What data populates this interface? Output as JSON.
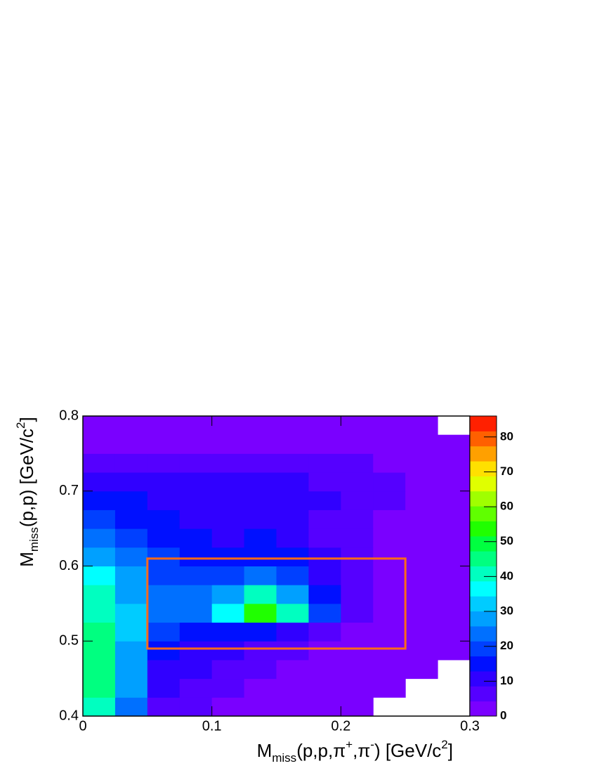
{
  "chart_data": {
    "type": "heatmap2d",
    "x_label": [
      {
        "text": "M"
      },
      {
        "text": "miss",
        "shift": "sub"
      },
      {
        "text": "(p,p,π"
      },
      {
        "text": "+",
        "shift": "super"
      },
      {
        "text": ",π"
      },
      {
        "text": "-",
        "shift": "super"
      },
      {
        "text": ") [GeV/c"
      },
      {
        "text": "2",
        "shift": "super"
      },
      {
        "text": "]"
      }
    ],
    "y_label": [
      {
        "text": "M"
      },
      {
        "text": "miss",
        "shift": "sub"
      },
      {
        "text": "(p,p) [GeV/c"
      },
      {
        "text": "2",
        "shift": "super"
      },
      {
        "text": "]"
      }
    ],
    "xlim": [
      0,
      0.3
    ],
    "xticks": [
      0,
      0.1,
      0.2,
      0.3
    ],
    "ylim": [
      0.4,
      0.8
    ],
    "yticks": [
      0.4,
      0.5,
      0.6,
      0.7,
      0.8
    ],
    "zlim": [
      0,
      86
    ],
    "zticks": [
      0,
      10,
      20,
      30,
      40,
      50,
      60,
      70,
      80
    ],
    "palette": [
      "#7a00ff",
      "#5500ff",
      "#3000ff",
      "#0010ff",
      "#0040ff",
      "#0070ff",
      "#00a0ff",
      "#00ccff",
      "#00ffff",
      "#00ffc0",
      "#00ff80",
      "#00ff40",
      "#20ff00",
      "#60ff00",
      "#a0ff00",
      "#e0ff00",
      "#ffe000",
      "#ffa000",
      "#ff6000",
      "#ff2000"
    ],
    "xbins": [
      0,
      0.025,
      0.05,
      0.075,
      0.1,
      0.125,
      0.15,
      0.175,
      0.2,
      0.225,
      0.25,
      0.275,
      0.3
    ],
    "ybins": [
      0.4,
      0.425,
      0.45,
      0.475,
      0.5,
      0.525,
      0.55,
      0.575,
      0.6,
      0.625,
      0.65,
      0.675,
      0.7,
      0.725,
      0.75,
      0.775,
      0.8
    ],
    "z": [
      [
        40,
        25,
        8,
        5,
        4,
        2,
        1,
        1,
        1,
        0,
        0,
        0
      ],
      [
        45,
        28,
        10,
        7,
        5,
        3,
        2,
        1,
        1,
        1,
        0,
        0
      ],
      [
        45,
        30,
        12,
        9,
        7,
        5,
        3,
        2,
        1,
        1,
        1,
        0
      ],
      [
        45,
        30,
        14,
        12,
        10,
        8,
        6,
        4,
        2,
        1,
        1,
        1
      ],
      [
        45,
        32,
        18,
        16,
        16,
        15,
        12,
        8,
        4,
        2,
        1,
        1
      ],
      [
        42,
        32,
        22,
        24,
        35,
        55,
        40,
        18,
        6,
        3,
        2,
        1
      ],
      [
        40,
        30,
        22,
        22,
        30,
        40,
        30,
        15,
        6,
        3,
        2,
        1
      ],
      [
        35,
        28,
        20,
        18,
        20,
        22,
        18,
        10,
        5,
        3,
        2,
        1
      ],
      [
        30,
        25,
        18,
        15,
        15,
        16,
        14,
        9,
        5,
        3,
        2,
        1
      ],
      [
        25,
        20,
        15,
        13,
        12,
        13,
        12,
        8,
        5,
        3,
        2,
        1
      ],
      [
        20,
        17,
        14,
        12,
        10,
        10,
        10,
        8,
        6,
        4,
        3,
        2
      ],
      [
        16,
        14,
        12,
        11,
        10,
        10,
        10,
        9,
        7,
        5,
        4,
        2
      ],
      [
        12,
        11,
        10,
        10,
        9,
        9,
        9,
        8,
        7,
        5,
        4,
        3
      ],
      [
        8,
        8,
        7,
        7,
        6,
        6,
        6,
        6,
        5,
        4,
        3,
        2
      ],
      [
        4,
        4,
        4,
        3,
        3,
        3,
        3,
        3,
        3,
        2,
        2,
        1
      ],
      [
        2,
        2,
        2,
        1,
        1,
        1,
        1,
        1,
        1,
        1,
        1,
        0
      ]
    ],
    "cut_box": {
      "xlim": [
        0.05,
        0.25
      ],
      "ylim": [
        0.49,
        0.61
      ],
      "color": "#ff6a1a"
    }
  }
}
